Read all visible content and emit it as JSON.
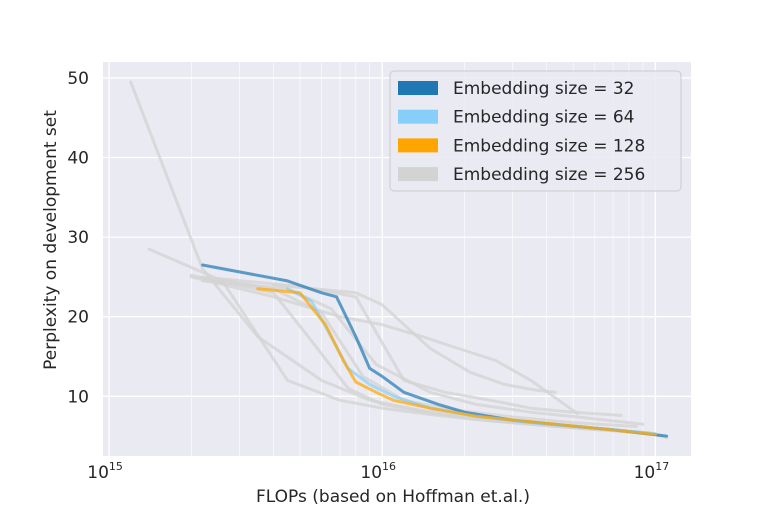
{
  "chart_data": {
    "type": "line",
    "title": "",
    "xlabel": "FLOPs (based on Hoffman et.al.)",
    "ylabel": "Perplexity on development set",
    "xscale": "log",
    "xlim": [
      950000000000000.0,
      1.35e+17
    ],
    "ylim": [
      2.5,
      52
    ],
    "x_ticks": [
      {
        "value": 1000000000000000.0,
        "base": "10",
        "exp": "15"
      },
      {
        "value": 1e+16,
        "base": "10",
        "exp": "16"
      },
      {
        "value": 1e+17,
        "base": "10",
        "exp": "17"
      }
    ],
    "y_ticks": [
      10,
      20,
      30,
      40,
      50
    ],
    "grid": true,
    "legend_position": "top-right",
    "legend": [
      {
        "label": "Embedding size = 32",
        "color": "#1f77b4"
      },
      {
        "label": "Embedding size = 64",
        "color": "#87cefa"
      },
      {
        "label": "Embedding size = 128",
        "color": "#ffa500"
      },
      {
        "label": "Embedding size = 256",
        "color": "#d3d3d3"
      }
    ],
    "series": [
      {
        "group": 3,
        "x": [
          1200000000000000.0,
          2200000000000000.0,
          3500000000000000.0,
          6000000000000000.0,
          9000000000000000.0,
          1.4e+16,
          2.3e+16,
          3.8e+16,
          6e+16,
          9.5e+16,
          1.1e+17
        ],
        "y": [
          49.5,
          26.0,
          17.5,
          12.0,
          9.5,
          8.2,
          7.3,
          6.6,
          6.0,
          5.4,
          4.8
        ]
      },
      {
        "group": 3,
        "x": [
          1400000000000000.0,
          2600000000000000.0,
          4500000000000000.0,
          7000000000000000.0,
          1e+16,
          1.6e+16,
          2.5e+16,
          4e+16,
          6.5e+16,
          1e+17
        ],
        "y": [
          28.5,
          24.5,
          12.0,
          9.5,
          8.5,
          7.6,
          6.9,
          6.3,
          5.8,
          5.2
        ]
      },
      {
        "group": 3,
        "x": [
          2000000000000000.0,
          4000000000000000.0,
          5500000000000000.0,
          7500000000000000.0,
          1e+16,
          1.5e+16,
          2.2e+16,
          3.5e+16,
          5.5e+16,
          9e+16
        ],
        "y": [
          25.2,
          23.0,
          17.0,
          11.0,
          9.0,
          7.9,
          7.1,
          6.5,
          5.9,
          5.4
        ]
      },
      {
        "group": 3,
        "x": [
          2200000000000000.0,
          4000000000000000.0,
          6000000000000000.0,
          8500000000000000.0,
          1.2e+16,
          1.8e+16,
          3e+16,
          5e+16,
          8.5e+16
        ],
        "y": [
          25.0,
          23.5,
          20.5,
          12.5,
          9.5,
          8.3,
          7.4,
          6.7,
          6.2
        ]
      },
      {
        "group": 3,
        "x": [
          2200000000000000.0,
          4500000000000000.0,
          6500000000000000.0,
          9500000000000000.0,
          1.5e+16,
          2.2e+16,
          3.5e+16,
          5.5e+16,
          9e+16
        ],
        "y": [
          24.5,
          23.5,
          21.0,
          14.0,
          10.5,
          9.0,
          8.0,
          7.3,
          6.5
        ]
      },
      {
        "group": 3,
        "x": [
          2500000000000000.0,
          5000000000000000.0,
          8000000000000000.0,
          1.2e+16,
          1.7e+16,
          2.5e+16,
          3.5e+16,
          5e+16,
          7.5e+16
        ],
        "y": [
          24.8,
          23.8,
          22.5,
          12.0,
          10.5,
          9.5,
          8.5,
          8.0,
          7.6
        ]
      },
      {
        "group": 3,
        "x": [
          2000000000000000.0,
          4000000000000000.0,
          7000000000000000.0,
          1e+16,
          1.4e+16,
          1.9e+16,
          2.6e+16,
          3.5e+16,
          5.2e+16
        ],
        "y": [
          25.0,
          22.5,
          20.0,
          19.0,
          17.5,
          16.0,
          14.5,
          12.0,
          7.8
        ]
      },
      {
        "group": 3,
        "x": [
          4000000000000000.0,
          8000000000000000.0,
          1e+16,
          1.5e+16,
          2.1e+16,
          2.8e+16,
          3.6e+16,
          4.3e+16
        ],
        "y": [
          24.0,
          23.0,
          21.5,
          16.0,
          13.0,
          11.5,
          10.8,
          10.5
        ]
      },
      {
        "group": 0,
        "x": [
          2200000000000000.0,
          4500000000000000.0,
          6000000000000000.0,
          6800000000000000.0,
          8000000000000000.0,
          9000000000000000.0,
          1e+16,
          1.2e+16,
          1.6e+16,
          2e+16,
          3e+16,
          4.5e+16,
          7e+16,
          1.1e+17
        ],
        "y": [
          26.5,
          24.5,
          23.0,
          22.5,
          17.5,
          13.5,
          12.5,
          10.5,
          9.0,
          8.0,
          7.0,
          6.4,
          5.8,
          5.0
        ]
      },
      {
        "group": 1,
        "x": [
          4500000000000000.0,
          5500000000000000.0,
          6500000000000000.0,
          7500000000000000.0,
          9000000000000000.0,
          1.1e+16,
          1.5e+16,
          2.2e+16,
          3.5e+16,
          6e+16,
          1e+17
        ],
        "y": [
          23.5,
          22.0,
          17.5,
          13.5,
          11.5,
          10.0,
          8.5,
          7.5,
          6.7,
          6.0,
          5.3
        ]
      },
      {
        "group": 2,
        "x": [
          3500000000000000.0,
          5000000000000000.0,
          6200000000000000.0,
          7200000000000000.0,
          8000000000000000.0,
          9500000000000000.0,
          1.1e+16,
          1.5e+16,
          2.2e+16,
          3.5e+16,
          6e+16,
          1e+17
        ],
        "y": [
          23.5,
          23.0,
          19.0,
          14.5,
          11.8,
          10.5,
          9.5,
          8.5,
          7.5,
          6.8,
          6.0,
          5.2
        ]
      }
    ]
  }
}
